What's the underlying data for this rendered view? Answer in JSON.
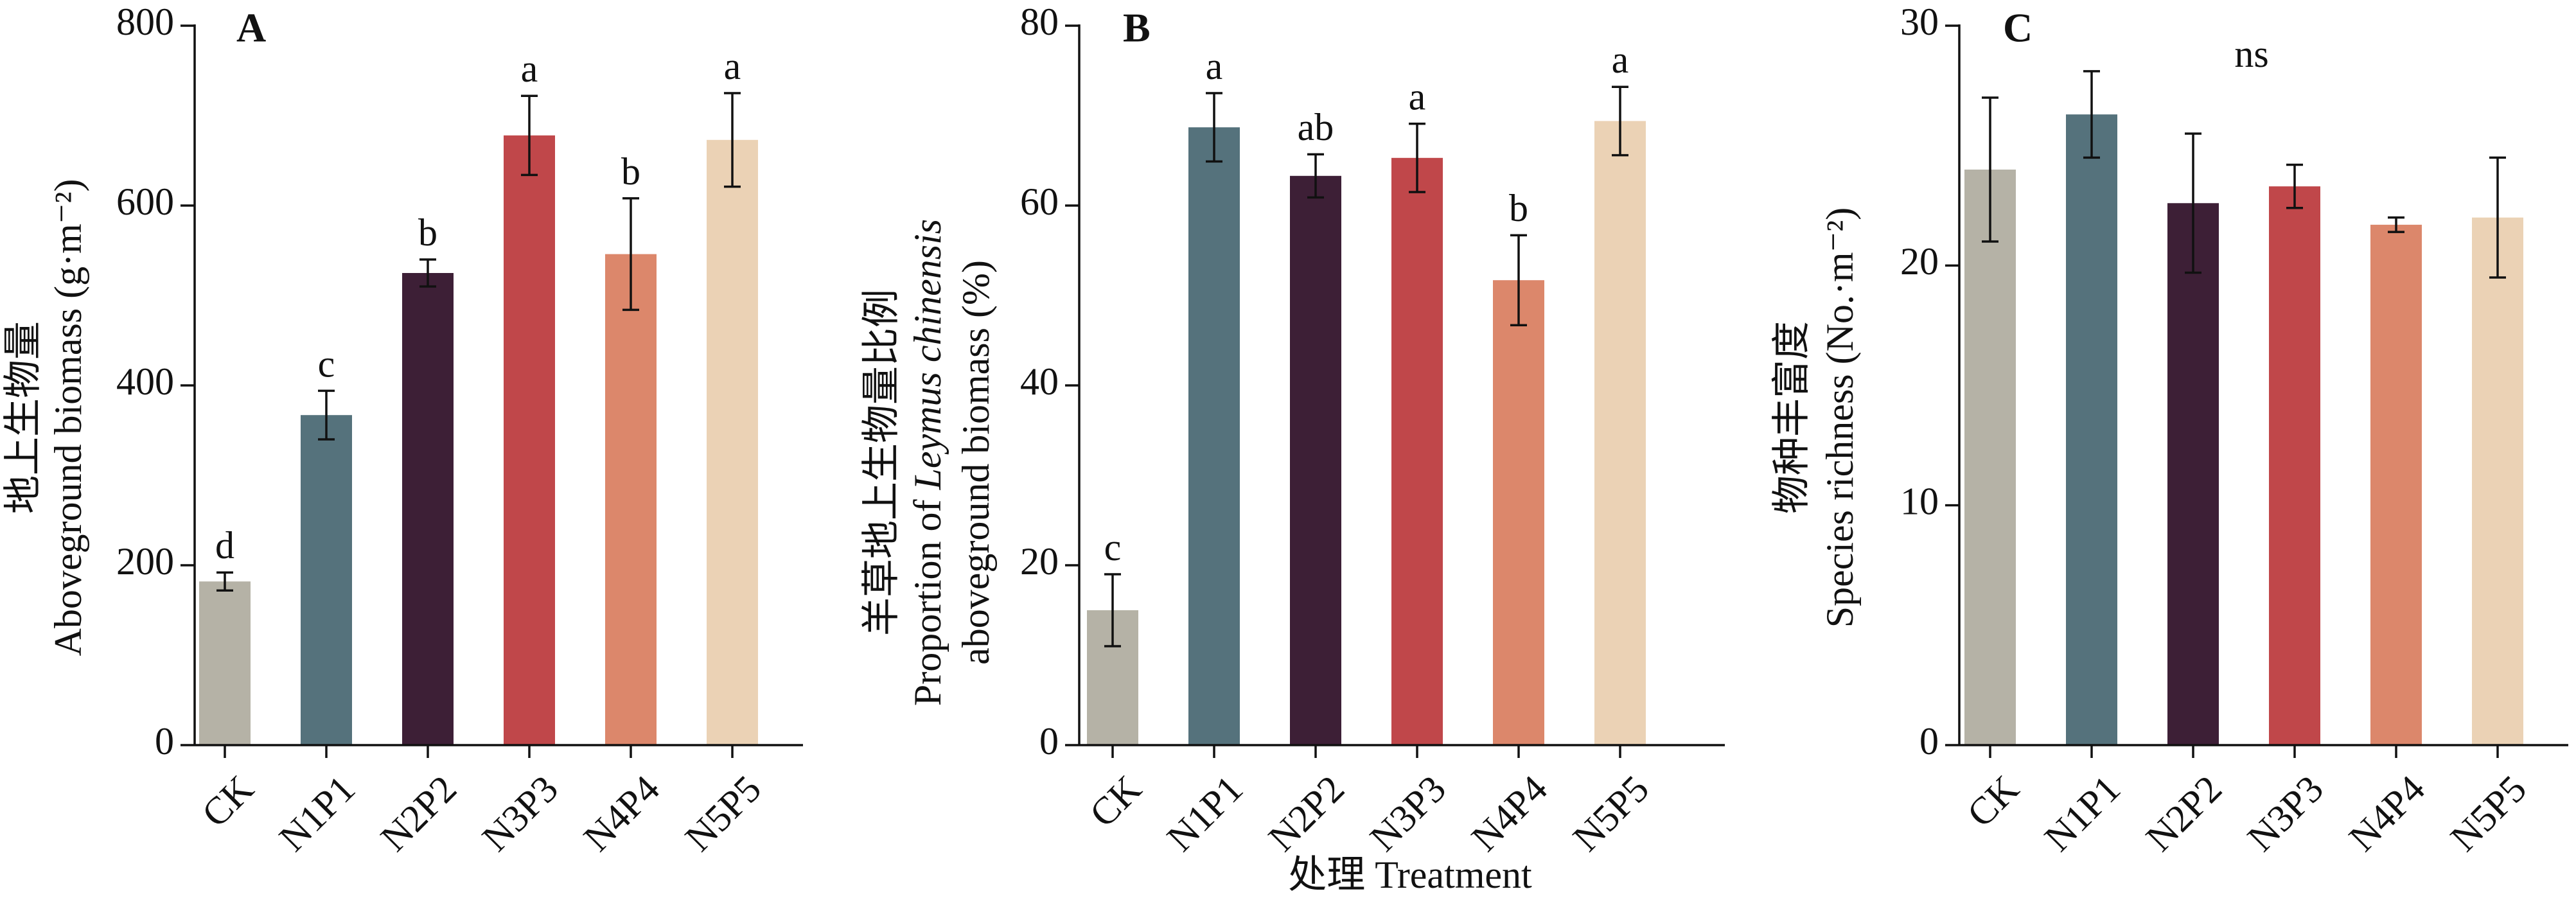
{
  "figure": {
    "xlabel": "处理 Treatment"
  },
  "colors": {
    "CK": "#b5b2a6",
    "N1P1": "#55727c",
    "N2P2": "#3d1f36",
    "N3P3": "#c0474a",
    "N4P4": "#dc876b",
    "N5P5": "#ebd2b5"
  },
  "chart_data": [
    {
      "panel": "A",
      "type": "bar",
      "ylabel_cn": "地上生物量",
      "ylabel_en": "Aboveground biomass (g·m⁻²)",
      "categories": [
        "CK",
        "N1P1",
        "N2P2",
        "N3P3",
        "N4P4",
        "N5P5"
      ],
      "values": [
        182,
        367,
        525,
        678,
        546,
        673
      ],
      "errors": [
        10,
        27,
        15,
        44,
        62,
        52
      ],
      "letters": [
        "d",
        "c",
        "b",
        "a",
        "b",
        "a"
      ],
      "ylim": [
        0,
        800
      ],
      "yticks": [
        0,
        200,
        400,
        600,
        800
      ]
    },
    {
      "panel": "B",
      "type": "bar",
      "ylabel_cn": "羊草地上生物量比例",
      "ylabel_en_pre": "Proportion of ",
      "ylabel_en_italic": "Leymus chinensis",
      "ylabel_en_2": "aboveground biomass (%)",
      "categories": [
        "CK",
        "N1P1",
        "N2P2",
        "N3P3",
        "N4P4",
        "N5P5"
      ],
      "values": [
        15,
        68.7,
        63.3,
        65.3,
        51.7,
        69.4
      ],
      "errors": [
        4,
        3.8,
        2.4,
        3.8,
        5,
        3.8
      ],
      "letters": [
        "c",
        "a",
        "ab",
        "a",
        "b",
        "a"
      ],
      "ylim": [
        0,
        80
      ],
      "yticks": [
        0,
        20,
        40,
        60,
        80
      ]
    },
    {
      "panel": "C",
      "type": "bar",
      "ylabel_cn": "物种丰富度",
      "ylabel_en": "Species richness (No.·m⁻²)",
      "annotation": "ns",
      "categories": [
        "CK",
        "N1P1",
        "N2P2",
        "N3P3",
        "N4P4",
        "N5P5"
      ],
      "values": [
        24,
        26.3,
        22.6,
        23.3,
        21.7,
        22
      ],
      "errors": [
        3,
        1.8,
        2.9,
        0.9,
        0.3,
        2.5
      ],
      "ylim": [
        0,
        30
      ],
      "yticks": [
        0,
        10,
        20,
        30
      ]
    }
  ]
}
